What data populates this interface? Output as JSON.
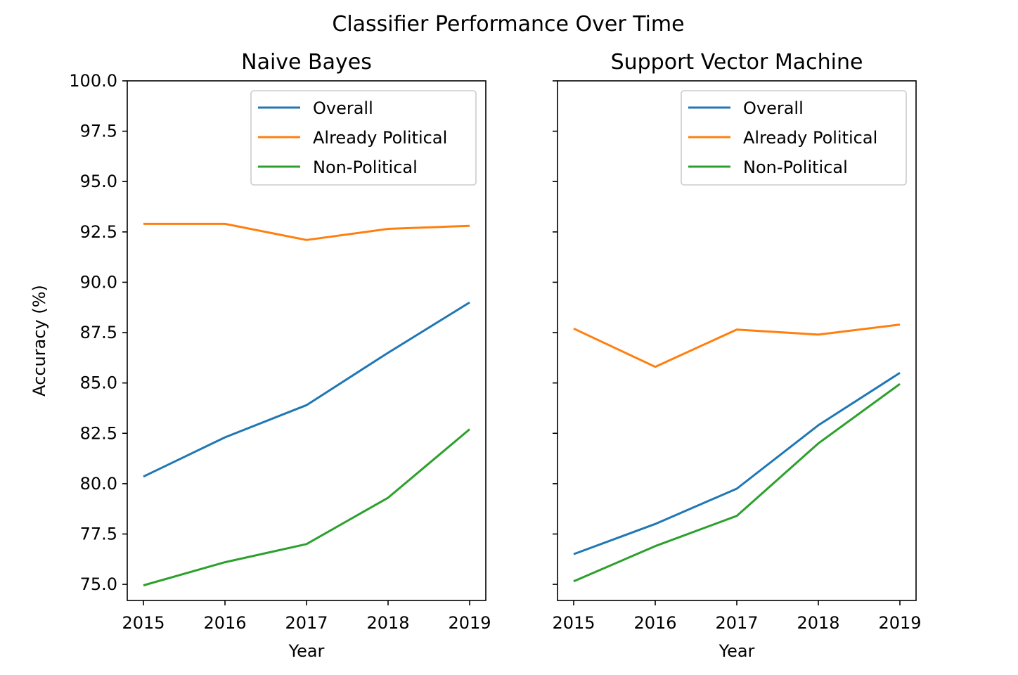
{
  "chart_data": {
    "suptitle": "Classifier Performance Over Time",
    "shared_y": true,
    "charts": [
      {
        "type": "line",
        "title": "Naive Bayes",
        "xlabel": "Year",
        "ylabel": "Accuracy (%)",
        "x": [
          2015,
          2016,
          2017,
          2018,
          2019
        ],
        "xticks": [
          "2015",
          "2016",
          "2017",
          "2018",
          "2019"
        ],
        "ylim": [
          74.2,
          100.0
        ],
        "yticks": [
          "75.0",
          "77.5",
          "80.0",
          "82.5",
          "85.0",
          "87.5",
          "90.0",
          "92.5",
          "95.0",
          "97.5",
          "100.0"
        ],
        "grid": false,
        "legend": "upper right",
        "series": [
          {
            "name": "Overall",
            "color": "#1f77b4",
            "values": [
              80.35,
              82.3,
              83.9,
              86.5,
              89.0
            ]
          },
          {
            "name": "Already Political",
            "color": "#ff7f0e",
            "values": [
              92.9,
              92.9,
              92.1,
              92.65,
              92.8
            ]
          },
          {
            "name": "Non-Political",
            "color": "#2ca02c",
            "values": [
              74.95,
              76.1,
              77.0,
              79.3,
              82.7
            ]
          }
        ]
      },
      {
        "type": "line",
        "title": "Support Vector Machine",
        "xlabel": "Year",
        "ylabel": "",
        "x": [
          2015,
          2016,
          2017,
          2018,
          2019
        ],
        "xticks": [
          "2015",
          "2016",
          "2017",
          "2018",
          "2019"
        ],
        "ylim": [
          74.2,
          100.0
        ],
        "yticks": [],
        "grid": false,
        "legend": "upper right",
        "series": [
          {
            "name": "Overall",
            "color": "#1f77b4",
            "values": [
              76.5,
              78.0,
              79.75,
              82.9,
              85.5
            ]
          },
          {
            "name": "Already Political",
            "color": "#ff7f0e",
            "values": [
              87.7,
              85.8,
              87.65,
              87.4,
              87.9
            ]
          },
          {
            "name": "Non-Political",
            "color": "#2ca02c",
            "values": [
              75.15,
              76.9,
              78.4,
              82.0,
              84.95
            ]
          }
        ]
      }
    ]
  }
}
